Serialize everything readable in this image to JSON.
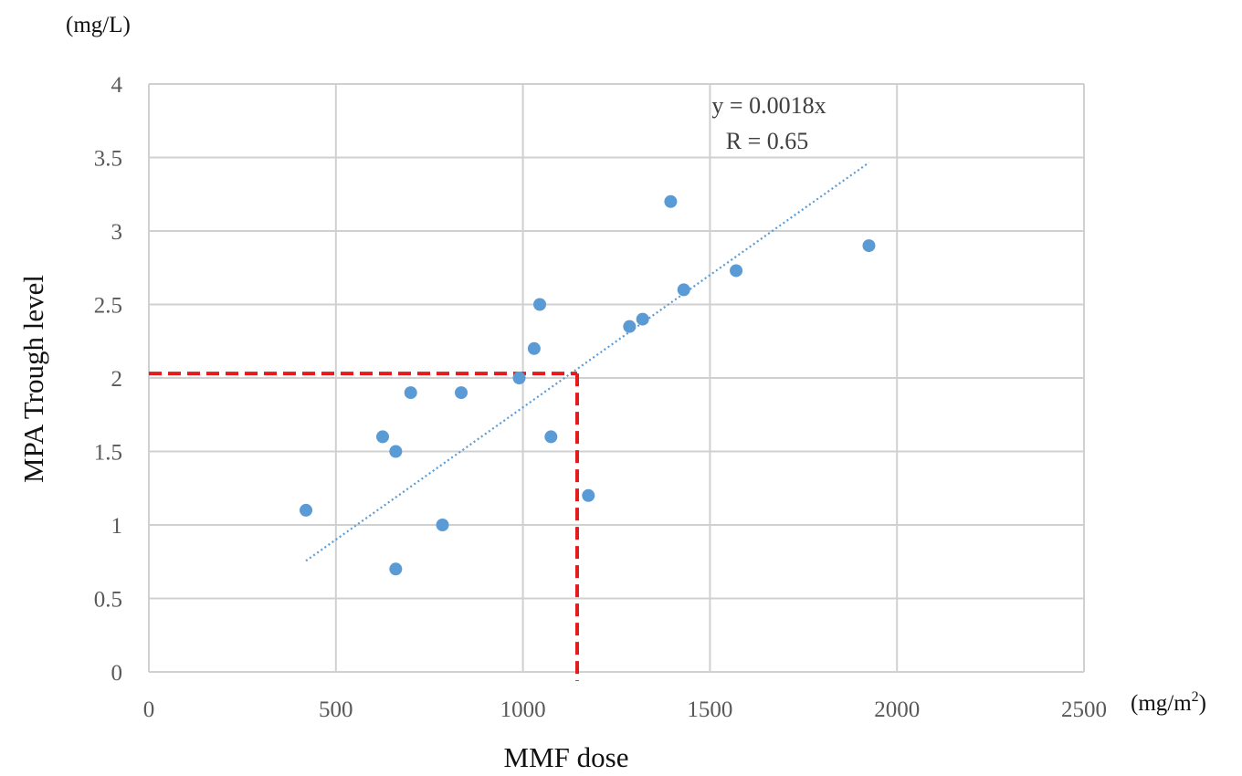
{
  "chart_data": {
    "type": "scatter",
    "xlabel": "MMF dose",
    "ylabel": "MPA Trough level",
    "x_unit": "(mg/m",
    "x_unit_sup": "2",
    "x_unit_close": ")",
    "y_unit": "(mg/L)",
    "xlim": [
      0,
      2500
    ],
    "ylim": [
      0,
      4
    ],
    "x_ticks": [
      0,
      500,
      1000,
      1500,
      2000,
      2500
    ],
    "y_ticks": [
      0,
      0.5,
      1,
      1.5,
      2,
      2.5,
      3,
      3.5,
      4
    ],
    "grid": true,
    "series": [
      {
        "color": "#5B9BD5",
        "points": [
          {
            "x": 420,
            "y": 1.1
          },
          {
            "x": 625,
            "y": 1.6
          },
          {
            "x": 660,
            "y": 1.5
          },
          {
            "x": 660,
            "y": 0.7
          },
          {
            "x": 700,
            "y": 1.9
          },
          {
            "x": 785,
            "y": 1.0
          },
          {
            "x": 835,
            "y": 1.9
          },
          {
            "x": 990,
            "y": 2.0
          },
          {
            "x": 1030,
            "y": 2.2
          },
          {
            "x": 1045,
            "y": 2.5
          },
          {
            "x": 1075,
            "y": 1.6
          },
          {
            "x": 1175,
            "y": 1.2
          },
          {
            "x": 1285,
            "y": 2.35
          },
          {
            "x": 1320,
            "y": 2.4
          },
          {
            "x": 1395,
            "y": 3.2
          },
          {
            "x": 1430,
            "y": 2.6
          },
          {
            "x": 1570,
            "y": 2.73
          },
          {
            "x": 1925,
            "y": 2.9
          }
        ]
      }
    ],
    "trendline": {
      "slope": 0.0018,
      "x_range": [
        420,
        1925
      ],
      "color": "#5B9BD5",
      "style": "dotted"
    },
    "reference_lines": {
      "color": "#E41A1C",
      "style": "dashed",
      "y_value": 2.03,
      "x_value": 1145
    },
    "annotations": [
      "y = 0.0018x",
      "R = 0.65"
    ]
  }
}
